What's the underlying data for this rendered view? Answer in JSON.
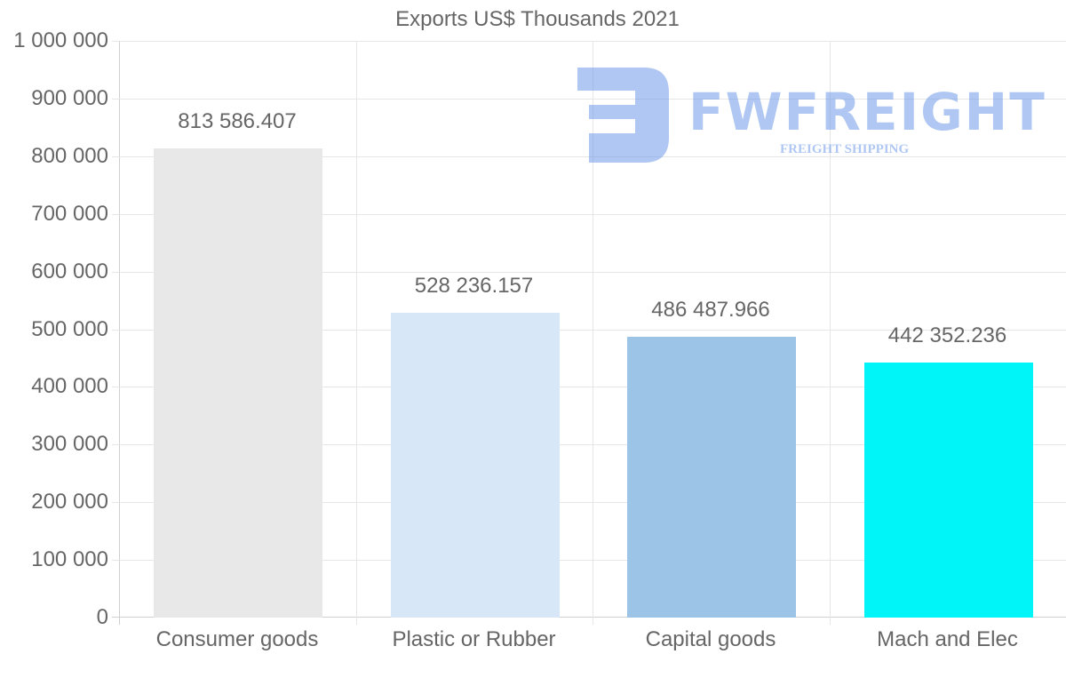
{
  "chart_data": {
    "type": "bar",
    "title": "Exports US$ Thousands 2021",
    "categories": [
      "Consumer goods",
      "Plastic or Rubber",
      "Capital goods",
      "Mach and Elec"
    ],
    "values": [
      813586.407,
      528236.157,
      486487.966,
      442352.236
    ],
    "value_labels": [
      "813 586.407",
      "528 236.157",
      "486 487.966",
      "442 352.236"
    ],
    "colors": [
      "#e8e8e8",
      "#d7e7f8",
      "#9bc4e7",
      "#00f5f8"
    ],
    "xlabel": "",
    "ylabel": "",
    "ylim": [
      0,
      1000000
    ],
    "yticks": [
      0,
      100000,
      200000,
      300000,
      400000,
      500000,
      600000,
      700000,
      800000,
      900000,
      1000000
    ],
    "ytick_labels": [
      "0",
      "100 000",
      "200 000",
      "300 000",
      "400 000",
      "500 000",
      "600 000",
      "700 000",
      "800 000",
      "900 000",
      "1 000 000"
    ],
    "grid": true,
    "legend": "none"
  },
  "watermark": {
    "brand": "FWFREIGHT",
    "tagline": "FREIGHT SHIPPING"
  }
}
